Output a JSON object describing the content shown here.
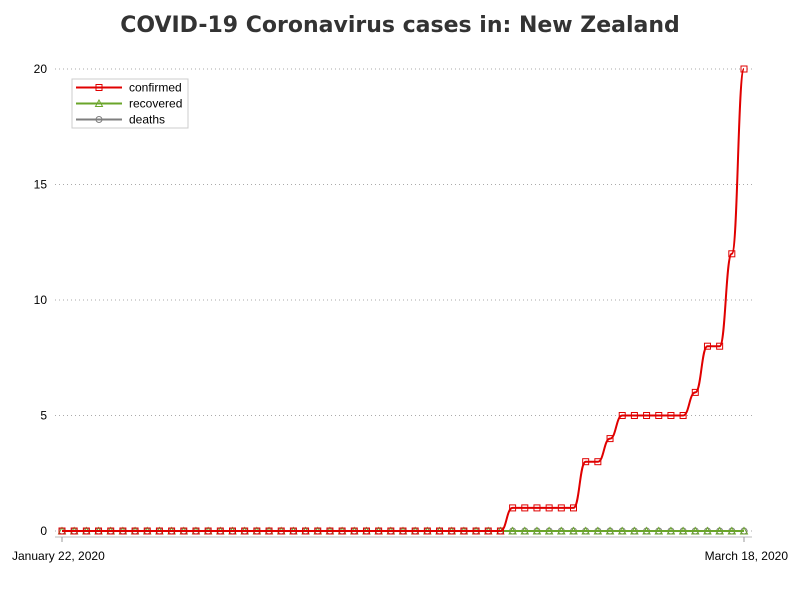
{
  "chart_data": {
    "type": "line",
    "title": "COVID-19 Coronavirus cases in: New Zealand",
    "x": [
      "2020-01-22",
      "2020-01-23",
      "2020-01-24",
      "2020-01-25",
      "2020-01-26",
      "2020-01-27",
      "2020-01-28",
      "2020-01-29",
      "2020-01-30",
      "2020-01-31",
      "2020-02-01",
      "2020-02-02",
      "2020-02-03",
      "2020-02-04",
      "2020-02-05",
      "2020-02-06",
      "2020-02-07",
      "2020-02-08",
      "2020-02-09",
      "2020-02-10",
      "2020-02-11",
      "2020-02-12",
      "2020-02-13",
      "2020-02-14",
      "2020-02-15",
      "2020-02-16",
      "2020-02-17",
      "2020-02-18",
      "2020-02-19",
      "2020-02-20",
      "2020-02-21",
      "2020-02-22",
      "2020-02-23",
      "2020-02-24",
      "2020-02-25",
      "2020-02-26",
      "2020-02-27",
      "2020-02-28",
      "2020-02-29",
      "2020-03-01",
      "2020-03-02",
      "2020-03-03",
      "2020-03-04",
      "2020-03-05",
      "2020-03-06",
      "2020-03-07",
      "2020-03-08",
      "2020-03-09",
      "2020-03-10",
      "2020-03-11",
      "2020-03-12",
      "2020-03-13",
      "2020-03-14",
      "2020-03-15",
      "2020-03-16",
      "2020-03-17",
      "2020-03-18"
    ],
    "series": [
      {
        "name": "confirmed",
        "color": "#e00000",
        "marker": "square",
        "values": [
          0,
          0,
          0,
          0,
          0,
          0,
          0,
          0,
          0,
          0,
          0,
          0,
          0,
          0,
          0,
          0,
          0,
          0,
          0,
          0,
          0,
          0,
          0,
          0,
          0,
          0,
          0,
          0,
          0,
          0,
          0,
          0,
          0,
          0,
          0,
          0,
          0,
          1,
          1,
          1,
          1,
          1,
          1,
          3,
          3,
          4,
          5,
          5,
          5,
          5,
          5,
          5,
          6,
          8,
          8,
          12,
          20
        ]
      },
      {
        "name": "recovered",
        "color": "#6aa52a",
        "marker": "triangle",
        "values": [
          0,
          0,
          0,
          0,
          0,
          0,
          0,
          0,
          0,
          0,
          0,
          0,
          0,
          0,
          0,
          0,
          0,
          0,
          0,
          0,
          0,
          0,
          0,
          0,
          0,
          0,
          0,
          0,
          0,
          0,
          0,
          0,
          0,
          0,
          0,
          0,
          0,
          0,
          0,
          0,
          0,
          0,
          0,
          0,
          0,
          0,
          0,
          0,
          0,
          0,
          0,
          0,
          0,
          0,
          0,
          0,
          0
        ]
      },
      {
        "name": "deaths",
        "color": "#7f7f7f",
        "marker": "circle",
        "values": [
          0,
          0,
          0,
          0,
          0,
          0,
          0,
          0,
          0,
          0,
          0,
          0,
          0,
          0,
          0,
          0,
          0,
          0,
          0,
          0,
          0,
          0,
          0,
          0,
          0,
          0,
          0,
          0,
          0,
          0,
          0,
          0,
          0,
          0,
          0,
          0,
          0,
          0,
          0,
          0,
          0,
          0,
          0,
          0,
          0,
          0,
          0,
          0,
          0,
          0,
          0,
          0,
          0,
          0,
          0,
          0,
          0
        ]
      }
    ],
    "x_tick_labels": [
      "January 22, 2020",
      "March 18, 2020"
    ],
    "y_ticks": [
      0,
      5,
      10,
      15,
      20
    ],
    "xlabel": "",
    "ylabel": "",
    "ylim": [
      0,
      20
    ],
    "grid": "horizontal dotted",
    "legend_position": "top-left"
  }
}
